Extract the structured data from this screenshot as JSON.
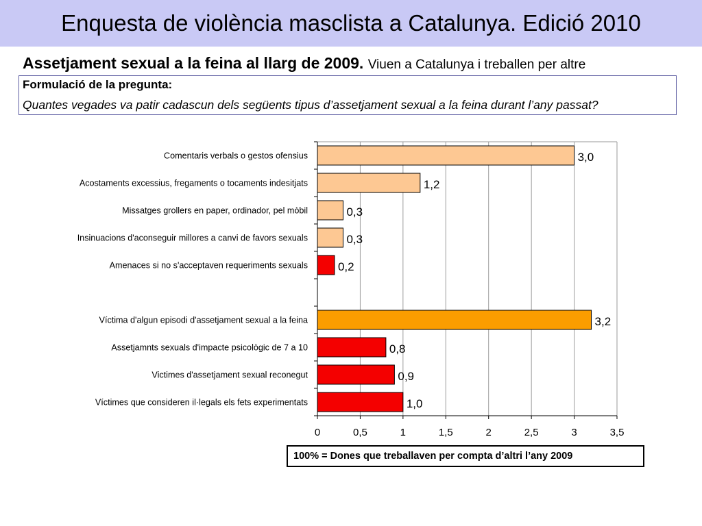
{
  "header": {
    "title": "Enquesta de violència masclista a Catalunya. Edició 2010"
  },
  "subtitle": {
    "bold": "Assetjament sexual a la feina al llarg de 2009.",
    "rest": "Viuen a Catalunya i treballen per altre"
  },
  "question": {
    "label": "Formulació de la pregunta:",
    "text": "Quantes vegades va patir cadascun dels següents tipus d’assetjament sexual a la feina durant l’any passat?"
  },
  "footnote": "100% = Dones que treballaven per compta d’altri  l’any 2009",
  "colors": {
    "peach": "#fdc893",
    "orange": "#fb9d00",
    "red": "#f40000",
    "banner": "#c9c9f5"
  },
  "chart_data": {
    "type": "bar",
    "orientation": "horizontal",
    "title": "",
    "xlabel": "",
    "ylabel": "",
    "xlim": [
      0,
      3.5
    ],
    "xticks": [
      0,
      0.5,
      1,
      1.5,
      2,
      2.5,
      3,
      3.5
    ],
    "xtick_labels": [
      "0",
      "0,5",
      "1",
      "1,5",
      "2",
      "2,5",
      "3",
      "3,5"
    ],
    "grid": true,
    "legend": "none",
    "categories": [
      "Comentaris verbals o gestos ofensius",
      "Acostaments excessius, fregaments o tocaments indesitjats",
      "Missatges grollers en paper, ordinador, pel mòbil",
      "Insinuacions d'aconseguir millores a canvi de favors sexuals",
      "Amenaces si no s'acceptaven requeriments sexuals",
      "",
      "Víctima d'algun episodi d'assetjament sexual a la feina",
      "Assetjamnts sexuals d'impacte psicològic de 7 a 10",
      "Victimes d'assetjament sexual reconegut",
      "Víctimes que consideren il·legals els fets experimentats"
    ],
    "values": [
      3.0,
      1.2,
      0.3,
      0.3,
      0.2,
      null,
      3.2,
      0.8,
      0.9,
      1.0
    ],
    "value_labels": [
      "3,0",
      "1,2",
      "0,3",
      "0,3",
      "0,2",
      "",
      "3,2",
      "0,8",
      "0,9",
      "1,0"
    ],
    "bar_colors": [
      "peach",
      "peach",
      "peach",
      "peach",
      "red",
      "",
      "orange",
      "red",
      "red",
      "red"
    ]
  }
}
